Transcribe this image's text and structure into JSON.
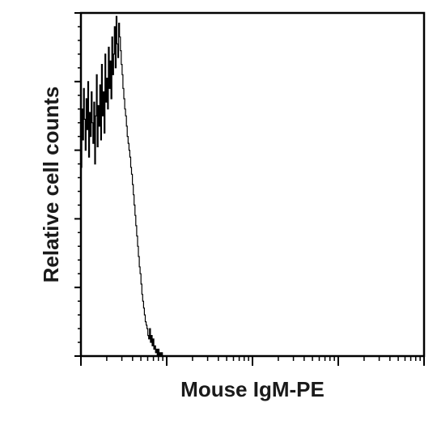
{
  "chart_data": {
    "type": "line",
    "title": "",
    "xlabel": "Mouse IgM-PE",
    "ylabel": "Relative cell counts",
    "x_scale": "log",
    "x_decades": 4,
    "y_major_ticks": 6,
    "grid": false,
    "legend": "none",
    "series": [
      {
        "color": "#000000",
        "x_decade_pos": [
          0.0,
          0.01,
          0.02,
          0.03,
          0.04,
          0.05,
          0.06,
          0.07,
          0.08,
          0.09,
          0.1,
          0.11,
          0.12,
          0.13,
          0.14,
          0.15,
          0.16,
          0.17,
          0.18,
          0.19,
          0.2,
          0.21,
          0.22,
          0.23,
          0.24,
          0.25,
          0.26,
          0.27,
          0.28,
          0.29,
          0.3,
          0.31,
          0.32,
          0.33,
          0.34,
          0.35,
          0.36,
          0.37,
          0.38,
          0.39,
          0.4,
          0.41,
          0.42,
          0.43,
          0.44,
          0.45,
          0.46,
          0.47,
          0.48,
          0.49,
          0.5,
          0.51,
          0.52,
          0.53,
          0.54,
          0.55,
          0.56,
          0.57,
          0.58,
          0.59,
          0.6,
          0.61,
          0.62,
          0.63,
          0.64,
          0.65,
          0.66,
          0.67,
          0.68,
          0.69,
          0.7,
          0.71,
          0.72,
          0.73,
          0.74,
          0.75,
          0.76,
          0.77,
          0.78,
          0.79,
          0.8,
          0.81,
          0.82,
          0.83,
          0.84,
          0.85,
          0.86,
          0.87,
          0.88,
          0.89,
          0.9,
          0.91,
          0.92,
          0.93,
          0.94,
          0.95,
          0.96,
          0.97,
          0.98,
          0.99,
          1.0,
          1.01,
          1.02,
          1.03,
          1.04,
          1.05,
          1.06,
          1.07,
          1.08,
          1.09,
          1.1,
          1.11,
          1.12,
          1.13,
          1.14,
          1.15,
          1.16,
          1.17,
          1.18,
          1.19,
          1.2,
          1.21,
          1.22,
          1.23,
          1.24,
          1.25,
          1.26,
          1.27,
          1.28,
          1.29,
          1.3,
          1.31,
          1.32,
          1.33,
          1.34,
          1.35,
          1.36,
          1.37,
          1.38,
          1.39,
          1.4
        ],
        "y_rel": [
          0.55,
          0.72,
          0.63,
          0.78,
          0.69,
          0.6,
          0.75,
          0.66,
          0.8,
          0.58,
          0.71,
          0.64,
          0.77,
          0.68,
          0.62,
          0.74,
          0.56,
          0.7,
          0.82,
          0.61,
          0.73,
          0.67,
          0.79,
          0.63,
          0.85,
          0.7,
          0.77,
          0.65,
          0.88,
          0.74,
          0.81,
          0.72,
          0.9,
          0.78,
          0.86,
          0.75,
          0.93,
          0.82,
          0.88,
          0.96,
          0.84,
          0.99,
          0.91,
          0.87,
          0.97,
          0.93,
          0.89,
          0.85,
          0.82,
          0.78,
          0.75,
          0.72,
          0.7,
          0.67,
          0.64,
          0.62,
          0.6,
          0.58,
          0.55,
          0.53,
          0.5,
          0.47,
          0.44,
          0.41,
          0.38,
          0.35,
          0.32,
          0.29,
          0.26,
          0.24,
          0.21,
          0.18,
          0.16,
          0.14,
          0.12,
          0.1,
          0.09,
          0.08,
          0.06,
          0.05,
          0.08,
          0.04,
          0.06,
          0.03,
          0.05,
          0.02,
          0.03,
          0.01,
          0.02,
          0.0,
          0.02,
          0.0,
          0.01,
          0.0,
          0.01,
          0.0,
          0.0,
          0.0,
          0.0,
          0.0,
          0.0,
          0.0,
          0.0,
          0.0,
          0.0,
          0.0,
          0.0,
          0.0,
          0.0,
          0.0,
          0.0,
          0.0,
          0.0,
          0.0,
          0.0,
          0.0,
          0.0,
          0.0,
          0.0,
          0.0,
          0.0,
          0.0,
          0.0,
          0.0,
          0.0,
          0.0,
          0.0,
          0.0,
          0.0,
          0.0,
          0.0,
          0.0,
          0.0,
          0.0,
          0.0,
          0.0,
          0.0,
          0.0,
          0.0,
          0.0,
          0.0
        ]
      }
    ]
  }
}
